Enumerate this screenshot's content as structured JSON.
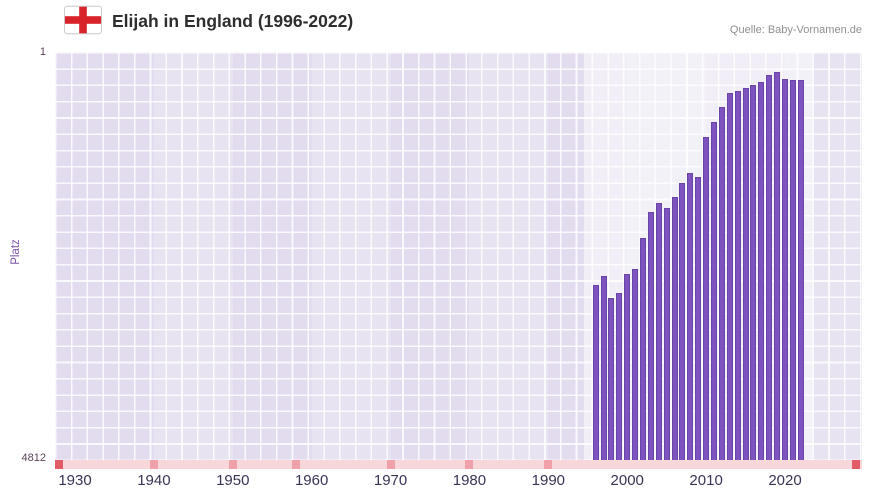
{
  "header": {
    "title": "Elijah in England (1996-2022)",
    "source": "Quelle: Baby-Vornamen.de"
  },
  "y_axis": {
    "label": "Platz",
    "top_tick": "1",
    "bottom_tick": "4812"
  },
  "x_axis": {
    "ticks": [
      "1930",
      "1940",
      "1950",
      "1960",
      "1970",
      "1980",
      "1990",
      "2000",
      "2010",
      "2020"
    ]
  },
  "axis_strip": {
    "marks": [
      1928,
      1940,
      1950,
      1958,
      1970,
      1980,
      1990,
      2029
    ]
  },
  "colors": {
    "bar": "#7c53bf",
    "bar_edge": "#6a45a6",
    "plot_bg": "#e2dcee",
    "band_overlay": "rgba(255,255,255,0.20)",
    "highlight_overlay": "rgba(255,255,255,0.50)",
    "grid_line": "rgba(255,255,255,0.80)",
    "strip_bg": "#f8d7da",
    "strip_mark": "#efa0a8",
    "strip_mark_strong": "#e25c66",
    "accent": "#7b52ab",
    "title_text": "#2e2e2e",
    "tick_text": "#3c3354",
    "ytick_text": "#5a4456",
    "source_text": "#8f8f8f",
    "flag_red": "#d8232a",
    "flag_border": "#c9c9c9"
  },
  "chart_data": {
    "type": "bar",
    "title": "Elijah in England (1996-2022)",
    "xlabel": "",
    "ylabel": "Platz",
    "legend": "none",
    "grid": true,
    "y_axis_inverted": true,
    "ylim": [
      1,
      4812
    ],
    "x": [
      1996,
      1997,
      1998,
      1999,
      2000,
      2001,
      2002,
      2003,
      2004,
      2005,
      2006,
      2007,
      2008,
      2009,
      2010,
      2011,
      2012,
      2013,
      2014,
      2015,
      2016,
      2017,
      2018,
      2019,
      2020,
      2021,
      2022
    ],
    "ranks": [
      2750,
      2640,
      2905,
      2840,
      2620,
      2565,
      2190,
      1890,
      1780,
      1835,
      1715,
      1540,
      1425,
      1480,
      1005,
      830,
      650,
      480,
      455,
      420,
      390,
      355,
      270,
      240,
      320,
      330,
      325
    ]
  }
}
